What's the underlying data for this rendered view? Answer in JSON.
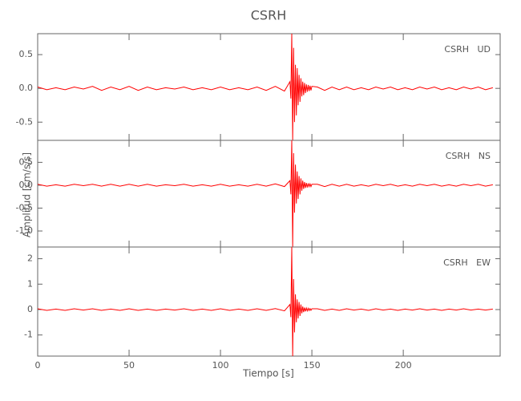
{
  "figure": {
    "title": "CSRH",
    "xlabel": "Tiempo [s]",
    "ylabel": "Amplitud [cm/s/s]"
  },
  "chart_data": [
    {
      "type": "line",
      "label": "CSRH   UD",
      "color": "#ff0000",
      "xlim": [
        0,
        253
      ],
      "ylim": [
        -0.77,
        0.81
      ],
      "yticks": [
        -0.5,
        {
          "value": 0,
          "label": "0.0"
        },
        0.5
      ],
      "x": [
        0,
        5,
        10,
        15,
        20,
        25,
        30,
        35,
        40,
        45,
        50,
        55,
        60,
        65,
        70,
        75,
        80,
        85,
        90,
        95,
        100,
        105,
        110,
        115,
        120,
        125,
        130,
        135,
        138,
        138.5,
        139,
        139.5,
        140,
        140.5,
        141,
        141.5,
        142,
        142.5,
        143,
        143.5,
        144,
        144.5,
        145,
        145.5,
        146,
        146.5,
        147,
        147.5,
        148,
        148.5,
        149,
        149.5,
        150,
        153,
        157,
        161,
        165,
        169,
        173,
        177,
        181,
        185,
        189,
        193,
        197,
        201,
        205,
        209,
        213,
        217,
        221,
        225,
        229,
        233,
        237,
        241,
        245,
        249
      ],
      "values": [
        0.02,
        -0.02,
        0.01,
        -0.02,
        0.02,
        -0.01,
        0.03,
        -0.03,
        0.02,
        -0.02,
        0.03,
        -0.03,
        0.02,
        -0.02,
        0.01,
        -0.01,
        0.02,
        -0.02,
        0.01,
        -0.02,
        0.02,
        -0.02,
        0.01,
        -0.02,
        0.02,
        -0.03,
        0.03,
        -0.04,
        0.1,
        -0.15,
        0.81,
        -0.77,
        0.6,
        -0.5,
        0.35,
        -0.4,
        0.3,
        -0.25,
        0.2,
        -0.2,
        0.15,
        -0.12,
        0.1,
        -0.1,
        0.08,
        -0.07,
        0.06,
        -0.05,
        0.05,
        -0.04,
        0.04,
        -0.03,
        0.03,
        0.02,
        -0.03,
        0.02,
        -0.02,
        0.02,
        -0.02,
        0.01,
        -0.02,
        0.02,
        -0.01,
        0.02,
        -0.02,
        0.01,
        -0.02,
        0.02,
        -0.01,
        0.02,
        -0.02,
        0.01,
        -0.02,
        0.02,
        -0.01,
        0.02,
        -0.02,
        0.01
      ]
    },
    {
      "type": "line",
      "label": "CSRH   NS",
      "color": "#ff0000",
      "xlim": [
        0,
        253
      ],
      "ylim": [
        -1.35,
        0.98
      ],
      "yticks": [
        {
          "value": -1,
          "label": "-1.0"
        },
        -0.5,
        {
          "value": 0,
          "label": "0.0"
        },
        0.5
      ],
      "x": [
        0,
        5,
        10,
        15,
        20,
        25,
        30,
        35,
        40,
        45,
        50,
        55,
        60,
        65,
        70,
        75,
        80,
        85,
        90,
        95,
        100,
        105,
        110,
        115,
        120,
        125,
        130,
        135,
        138,
        138.5,
        139,
        139.5,
        140,
        140.5,
        141,
        141.5,
        142,
        142.5,
        143,
        143.5,
        144,
        144.5,
        145,
        145.5,
        146,
        146.5,
        147,
        147.5,
        148,
        148.5,
        149,
        149.5,
        150,
        153,
        157,
        161,
        165,
        169,
        173,
        177,
        181,
        185,
        189,
        193,
        197,
        201,
        205,
        209,
        213,
        217,
        221,
        225,
        229,
        233,
        237,
        241,
        245,
        249
      ],
      "values": [
        0.02,
        -0.02,
        0.01,
        -0.02,
        0.02,
        -0.01,
        0.02,
        -0.02,
        0.02,
        -0.02,
        0.02,
        -0.02,
        0.02,
        -0.02,
        0.01,
        -0.01,
        0.02,
        -0.02,
        0.01,
        -0.02,
        0.02,
        -0.02,
        0.01,
        -0.02,
        0.02,
        -0.02,
        0.03,
        -0.03,
        0.1,
        -0.2,
        0.98,
        -1.35,
        0.7,
        -0.6,
        0.45,
        -0.4,
        0.3,
        -0.3,
        0.2,
        -0.2,
        0.15,
        -0.12,
        0.1,
        -0.08,
        0.07,
        -0.06,
        0.05,
        -0.05,
        0.04,
        -0.03,
        0.03,
        -0.03,
        0.02,
        0.02,
        -0.03,
        0.02,
        -0.02,
        0.02,
        -0.02,
        0.01,
        -0.02,
        0.02,
        -0.01,
        0.02,
        -0.02,
        0.01,
        -0.02,
        0.02,
        -0.01,
        0.02,
        -0.02,
        0.01,
        -0.02,
        0.02,
        -0.01,
        0.02,
        -0.02,
        0.01
      ]
    },
    {
      "type": "line",
      "label": "CSRH   EW",
      "color": "#ff0000",
      "xlim": [
        0,
        253
      ],
      "ylim": [
        -1.83,
        2.46
      ],
      "xticks": [
        0,
        50,
        100,
        150,
        200
      ],
      "yticks": [
        -1,
        0,
        1,
        2
      ],
      "x": [
        0,
        5,
        10,
        15,
        20,
        25,
        30,
        35,
        40,
        45,
        50,
        55,
        60,
        65,
        70,
        75,
        80,
        85,
        90,
        95,
        100,
        105,
        110,
        115,
        120,
        125,
        130,
        135,
        138,
        138.5,
        139,
        139.5,
        140,
        140.5,
        141,
        141.5,
        142,
        142.5,
        143,
        143.5,
        144,
        144.5,
        145,
        145.5,
        146,
        146.5,
        147,
        147.5,
        148,
        148.5,
        149,
        149.5,
        150,
        153,
        157,
        161,
        165,
        169,
        173,
        177,
        181,
        185,
        189,
        193,
        197,
        201,
        205,
        209,
        213,
        217,
        221,
        225,
        229,
        233,
        237,
        241,
        245,
        249
      ],
      "values": [
        0.03,
        -0.03,
        0.02,
        -0.03,
        0.03,
        -0.02,
        0.03,
        -0.03,
        0.02,
        -0.03,
        0.03,
        -0.03,
        0.02,
        -0.03,
        0.02,
        -0.02,
        0.03,
        -0.03,
        0.02,
        -0.03,
        0.03,
        -0.03,
        0.02,
        -0.03,
        0.03,
        -0.03,
        0.04,
        -0.05,
        0.2,
        -0.3,
        2.46,
        -1.83,
        1.2,
        -0.9,
        0.6,
        -0.5,
        0.4,
        -0.35,
        0.3,
        -0.25,
        0.2,
        -0.15,
        0.12,
        -0.1,
        0.08,
        -0.07,
        0.06,
        -0.05,
        0.05,
        -0.04,
        0.04,
        -0.03,
        0.03,
        0.03,
        -0.03,
        0.02,
        -0.03,
        0.03,
        -0.02,
        0.02,
        -0.03,
        0.03,
        -0.02,
        0.02,
        -0.03,
        0.02,
        -0.02,
        0.03,
        -0.02,
        0.02,
        -0.03,
        0.02,
        -0.02,
        0.03,
        -0.02,
        0.02,
        -0.02,
        0.02
      ]
    }
  ]
}
